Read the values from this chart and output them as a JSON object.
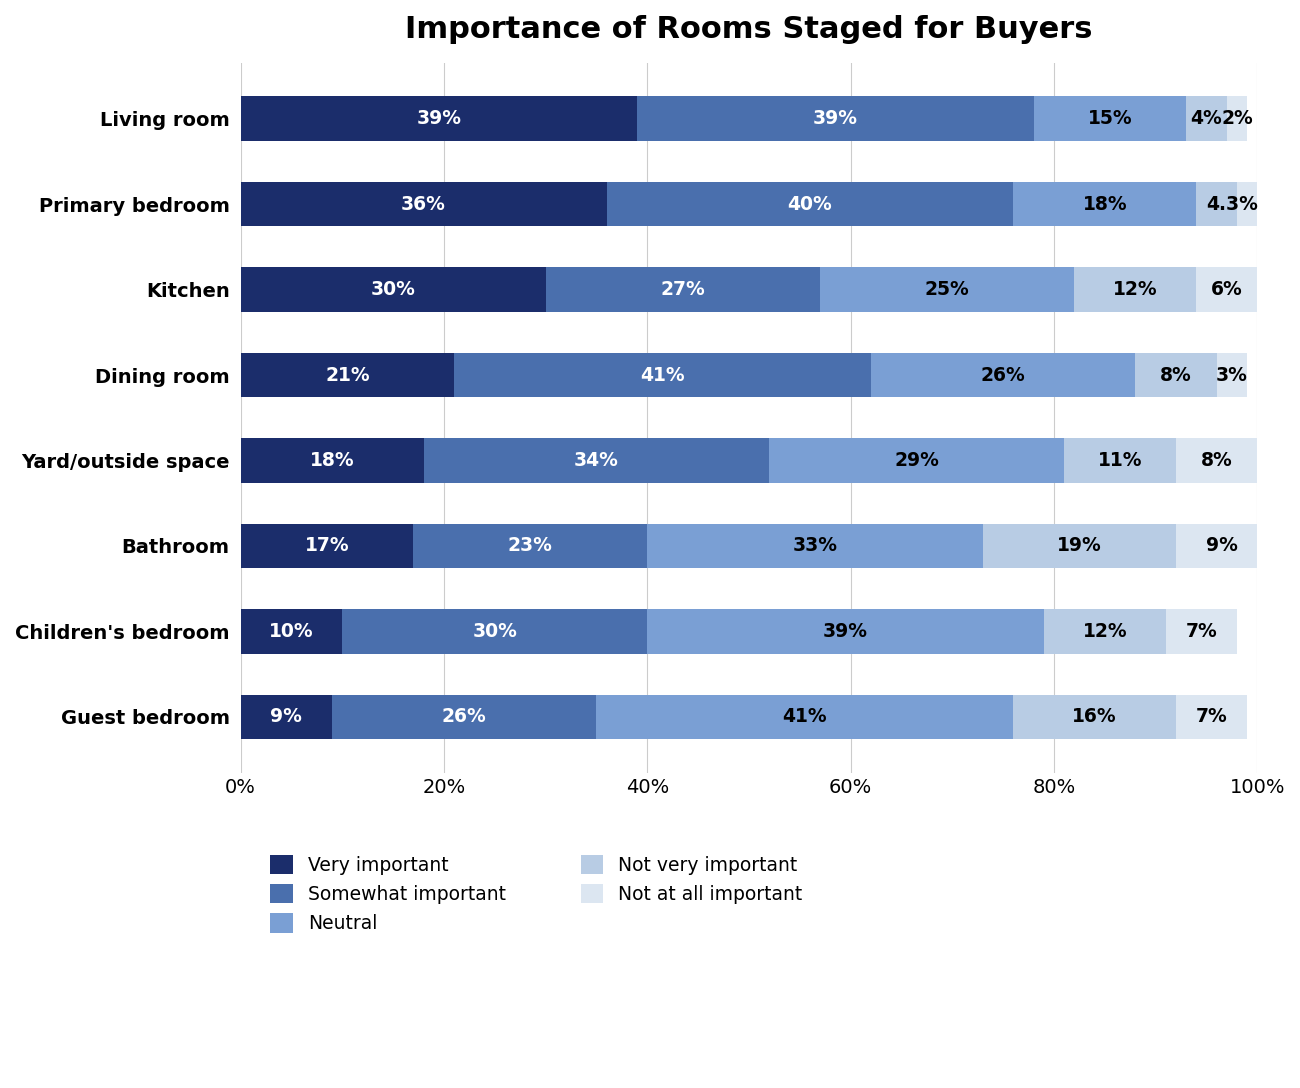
{
  "title": "Importance of Rooms Staged for Buyers",
  "categories": [
    "Living room",
    "Primary bedroom",
    "Kitchen",
    "Dining room",
    "Yard/outside space",
    "Bathroom",
    "Children's bedroom",
    "Guest bedroom"
  ],
  "series": {
    "Very important": [
      39,
      36,
      30,
      21,
      18,
      17,
      10,
      9
    ],
    "Somewhat important": [
      39,
      40,
      27,
      41,
      34,
      23,
      30,
      26
    ],
    "Neutral": [
      15,
      18,
      25,
      26,
      29,
      33,
      39,
      41
    ],
    "Not very important": [
      4,
      4,
      12,
      8,
      11,
      19,
      12,
      16
    ],
    "Not at all important": [
      2,
      3,
      6,
      3,
      8,
      9,
      7,
      7
    ]
  },
  "colors": {
    "Very important": "#1b2d6b",
    "Somewhat important": "#4a6fad",
    "Neutral": "#7a9fd4",
    "Not very important": "#b8cce4",
    "Not at all important": "#dce6f1"
  },
  "bar_labels": {
    "Very important": [
      "39%",
      "36%",
      "30%",
      "21%",
      "18%",
      "17%",
      "10%",
      "9%"
    ],
    "Somewhat important": [
      "39%",
      "40%",
      "27%",
      "41%",
      "34%",
      "23%",
      "30%",
      "26%"
    ],
    "Neutral": [
      "15%",
      "18%",
      "25%",
      "26%",
      "29%",
      "33%",
      "39%",
      "41%"
    ],
    "Not very important": [
      "4%",
      "4%",
      "12%",
      "8%",
      "11%",
      "19%",
      "12%",
      "16%"
    ],
    "Not at all important": [
      "2%",
      "3%",
      "6%",
      "3%",
      "8%",
      "9%",
      "7%",
      "7%"
    ]
  },
  "special_labels": {
    "1": {
      "segment": "Not very important",
      "text": "4.3%",
      "combined": true,
      "spans": [
        "Not very important",
        "Not at all important"
      ]
    }
  },
  "label_colors": {
    "Very important": "white",
    "Somewhat important": "white",
    "Neutral": "black",
    "Not very important": "black",
    "Not at all important": "black"
  },
  "xtick_labels": [
    "0%",
    "20%",
    "40%",
    "60%",
    "80%",
    "100%"
  ],
  "xtick_values": [
    0,
    20,
    40,
    60,
    80,
    100
  ],
  "title_fontsize": 22,
  "bar_height": 0.52,
  "label_fontsize": 13.5,
  "tick_fontsize": 13,
  "legend_fontsize": 13.5,
  "background_color": "#ffffff",
  "legend_order_col1": [
    "Very important",
    "Neutral",
    "Not at all important"
  ],
  "legend_order_col2": [
    "Somewhat important",
    "Not very important"
  ]
}
